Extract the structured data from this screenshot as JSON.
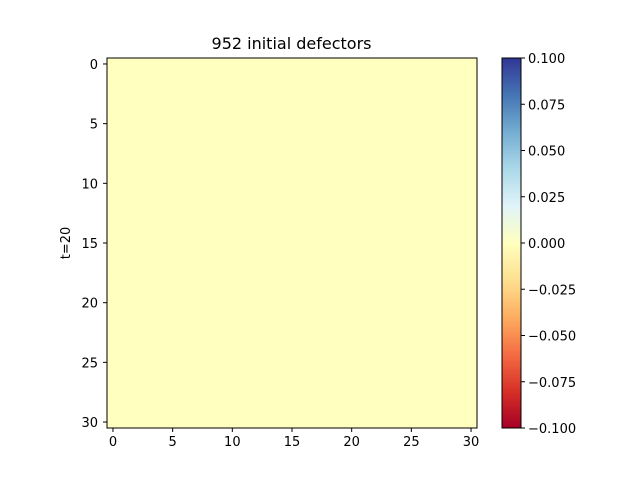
{
  "chart_data": {
    "type": "heatmap",
    "title": "952 initial defectors",
    "ylabel": "t=20",
    "xlabel": "",
    "rows": 31,
    "cols": 31,
    "fill_value": 0,
    "x_ticks": [
      0,
      5,
      10,
      15,
      20,
      25,
      30
    ],
    "y_ticks": [
      0,
      5,
      10,
      15,
      20,
      25,
      30
    ],
    "colorbar": {
      "colormap": "RdYlBu",
      "vmin": -0.1,
      "vmax": 0.1,
      "ticks": [
        0.1,
        0.075,
        0.05,
        0.025,
        0.0,
        -0.025,
        -0.05,
        -0.075,
        -0.1
      ],
      "tick_labels": [
        "0.100",
        "0.075",
        "0.050",
        "0.025",
        "0.000",
        "−0.025",
        "−0.050",
        "−0.075",
        "−0.100"
      ],
      "colors": [
        "#a50026",
        "#d73027",
        "#f46d43",
        "#fdae61",
        "#fee090",
        "#ffffbf",
        "#e0f3f8",
        "#abd9e9",
        "#74add1",
        "#4575b4",
        "#313695"
      ]
    },
    "cell_color": "#ffffbf"
  }
}
